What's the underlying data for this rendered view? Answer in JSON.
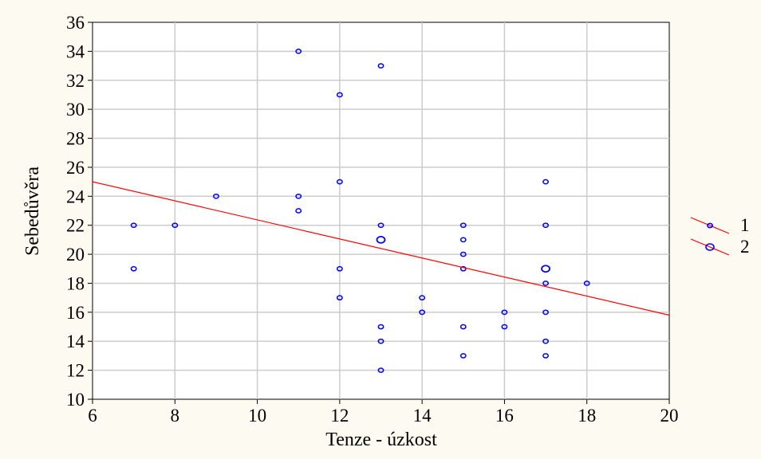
{
  "chart_data": {
    "type": "scatter",
    "xlabel": "Tenze - úzkost",
    "ylabel": "Sebedůvěra",
    "xlim": [
      6,
      20
    ],
    "ylim": [
      10,
      36
    ],
    "xticks": [
      6,
      8,
      10,
      12,
      14,
      16,
      18,
      20
    ],
    "yticks": [
      10,
      12,
      14,
      16,
      18,
      20,
      22,
      24,
      26,
      28,
      30,
      32,
      34,
      36
    ],
    "grid": true,
    "legend_position": "right",
    "legend": [
      {
        "label": "1",
        "marker": "small-circle"
      },
      {
        "label": "2",
        "marker": "large-circle"
      }
    ],
    "points_count_1": [
      [
        7,
        22
      ],
      [
        7,
        19
      ],
      [
        8,
        22
      ],
      [
        9,
        24
      ],
      [
        11,
        34
      ],
      [
        11,
        24
      ],
      [
        11,
        23
      ],
      [
        12,
        31
      ],
      [
        12,
        25
      ],
      [
        12,
        19
      ],
      [
        12,
        17
      ],
      [
        13,
        33
      ],
      [
        13,
        22
      ],
      [
        13,
        15
      ],
      [
        13,
        14
      ],
      [
        13,
        12
      ],
      [
        14,
        17
      ],
      [
        14,
        16
      ],
      [
        15,
        22
      ],
      [
        15,
        21
      ],
      [
        15,
        20
      ],
      [
        15,
        19
      ],
      [
        15,
        15
      ],
      [
        15,
        13
      ],
      [
        16,
        16
      ],
      [
        16,
        15
      ],
      [
        17,
        25
      ],
      [
        17,
        22
      ],
      [
        17,
        18
      ],
      [
        17,
        16
      ],
      [
        17,
        14
      ],
      [
        17,
        13
      ],
      [
        18,
        18
      ]
    ],
    "points_count_2": [
      [
        13,
        21
      ],
      [
        17,
        19
      ]
    ],
    "regression_line": {
      "x": [
        6,
        20
      ],
      "y": [
        25.0,
        15.8
      ]
    },
    "colors": {
      "points": "#0000ff",
      "line": "#ff0000",
      "grid": "#cccccc"
    }
  }
}
